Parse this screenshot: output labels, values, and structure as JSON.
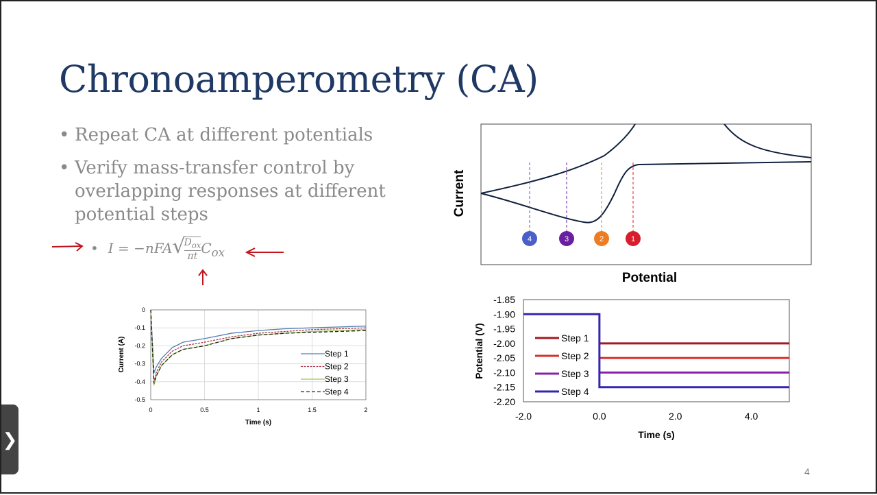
{
  "slide": {
    "title": "Chronoamperometry (CA)",
    "page_number": "4",
    "bullets": [
      "Repeat CA at different potentials",
      "Verify mass-transfer control by overlapping responses at different potential steps"
    ],
    "equation": {
      "lhs": "I = −nFA",
      "numerator": "D",
      "numerator_sub": "ox",
      "denominator": "πt",
      "factor": "C",
      "factor_sub": "ox"
    },
    "annotations": {
      "color": "#c0141e",
      "arrows": [
        "arrow-right",
        "arrow-left",
        "arrow-up"
      ]
    },
    "nav_tab": {
      "icon": "chevron-right-icon",
      "glyph": "❯"
    }
  },
  "chart_data": [
    {
      "type": "line",
      "xlabel": "Time (s)",
      "ylabel": "Current (A)",
      "xlim": [
        0,
        2
      ],
      "ylim": [
        -0.5,
        0
      ],
      "xticks": [
        "0",
        "0.5",
        "1",
        "1.5",
        "2"
      ],
      "yticks": [
        "0",
        "-0.1",
        "-0.2",
        "-0.3",
        "-0.4",
        "-0.5"
      ],
      "grid": true,
      "legend": "right",
      "x": [
        0,
        0.03,
        0.05,
        0.1,
        0.2,
        0.3,
        0.5,
        0.75,
        1,
        1.25,
        1.5,
        1.75,
        2
      ],
      "series": [
        {
          "name": "Step 1",
          "color": "#4f7fb3",
          "dash": "solid",
          "values": [
            0,
            -0.35,
            -0.32,
            -0.27,
            -0.21,
            -0.18,
            -0.16,
            -0.13,
            -0.115,
            -0.105,
            -0.1,
            -0.095,
            -0.09
          ]
        },
        {
          "name": "Step 2",
          "color": "#b0334a",
          "dash": "dotted",
          "values": [
            0,
            -0.4,
            -0.35,
            -0.29,
            -0.23,
            -0.2,
            -0.18,
            -0.15,
            -0.13,
            -0.12,
            -0.11,
            -0.105,
            -0.1
          ]
        },
        {
          "name": "Step 3",
          "color": "#9bc85a",
          "dash": "solid",
          "values": [
            0,
            -0.42,
            -0.37,
            -0.31,
            -0.25,
            -0.22,
            -0.2,
            -0.16,
            -0.14,
            -0.13,
            -0.12,
            -0.115,
            -0.11
          ]
        },
        {
          "name": "Step 4",
          "color": "#222222",
          "dash": "dashed",
          "values": [
            0,
            -0.41,
            -0.37,
            -0.31,
            -0.25,
            -0.22,
            -0.2,
            -0.16,
            -0.14,
            -0.13,
            -0.125,
            -0.12,
            -0.115
          ]
        }
      ]
    },
    {
      "type": "line",
      "xlabel": "Time (s)",
      "ylabel": "Potential (V)",
      "xlim": [
        -2,
        5
      ],
      "ylim": [
        -2.2,
        -1.85
      ],
      "xticks": [
        "-2.0",
        "0.0",
        "2.0",
        "4.0"
      ],
      "yticks": [
        "-1.85",
        "-1.90",
        "-1.95",
        "-2.00",
        "-2.05",
        "-2.10",
        "-2.15",
        "-2.20"
      ],
      "legend": "left",
      "initial_potential": -1.9,
      "step_time": 0,
      "series": [
        {
          "name": "Step 1",
          "color": "#a3191f",
          "value": -2.0
        },
        {
          "name": "Step 2",
          "color": "#d9302a",
          "value": -2.05
        },
        {
          "name": "Step 3",
          "color": "#8a1fa8",
          "value": -2.1
        },
        {
          "name": "Step 4",
          "color": "#3424b0",
          "value": -2.15
        }
      ]
    },
    {
      "type": "line",
      "xlabel": "Potential",
      "ylabel": "Current",
      "curve_color": "#0f1f3d",
      "markers": [
        {
          "label": "4",
          "color": "#4a5fc9"
        },
        {
          "label": "3",
          "color": "#6a1fa0"
        },
        {
          "label": "2",
          "color": "#f07c22"
        },
        {
          "label": "1",
          "color": "#d81e2c"
        }
      ]
    }
  ]
}
